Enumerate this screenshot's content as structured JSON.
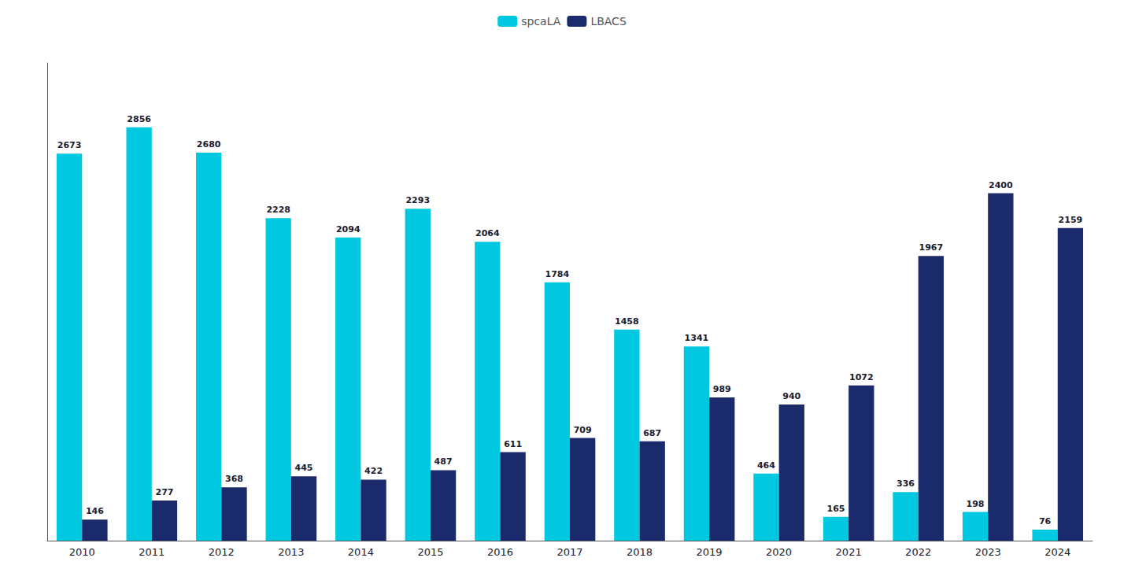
{
  "chart_data": {
    "type": "bar",
    "categories": [
      "2010",
      "2011",
      "2012",
      "2013",
      "2014",
      "2015",
      "2016",
      "2017",
      "2018",
      "2019",
      "2020",
      "2021",
      "2022",
      "2023",
      "2024"
    ],
    "series": [
      {
        "name": "spcaLA",
        "color": "#00C8E0",
        "values": [
          2673,
          2856,
          2680,
          2228,
          2094,
          2293,
          2064,
          1784,
          1458,
          1341,
          464,
          165,
          336,
          198,
          76
        ]
      },
      {
        "name": "LBACS",
        "color": "#1B2A6B",
        "values": [
          146,
          277,
          368,
          445,
          422,
          487,
          611,
          709,
          687,
          989,
          940,
          1072,
          1967,
          2400,
          2159
        ]
      }
    ],
    "ylim": [
      0,
      3300
    ],
    "grid": false,
    "legend": "top",
    "data_labels": true,
    "tick_labels": "x"
  }
}
